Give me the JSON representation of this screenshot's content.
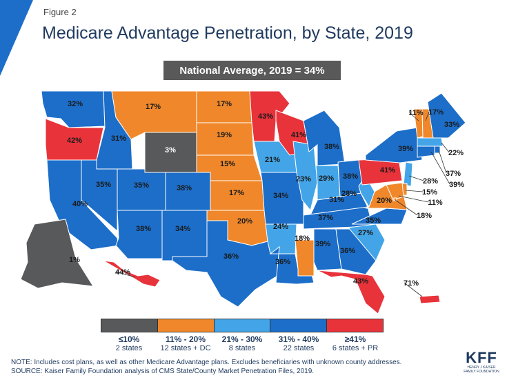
{
  "figure_label": "Figure 2",
  "title": "Medicare Advantage Penetration, by State, 2019",
  "national_average": "National Average, 2019 = 34%",
  "colors": {
    "dark_gray": "#58595b",
    "orange": "#f0882b",
    "light_blue": "#43a5e8",
    "blue": "#1c6ec9",
    "red": "#e8333b",
    "accent": "#1c6ec9"
  },
  "legend": [
    {
      "color": "#58595b",
      "range": "≤10%",
      "count": "2 states"
    },
    {
      "color": "#f0882b",
      "range": "11% - 20%",
      "count": "12 states + DC"
    },
    {
      "color": "#43a5e8",
      "range": "21% - 30%",
      "count": "8 states"
    },
    {
      "color": "#1c6ec9",
      "range": "31% - 40%",
      "count": "22 states"
    },
    {
      "color": "#e8333b",
      "range": "≥41%",
      "count": "6 states + PR"
    }
  ],
  "states": [
    {
      "name": "Washington",
      "value": "32%",
      "cls": "blue"
    },
    {
      "name": "Oregon",
      "value": "42%",
      "cls": "red"
    },
    {
      "name": "California",
      "value": "40%",
      "cls": "blue"
    },
    {
      "name": "Idaho",
      "value": "31%",
      "cls": "blue"
    },
    {
      "name": "Nevada",
      "value": "35%",
      "cls": "blue"
    },
    {
      "name": "Montana",
      "value": "17%",
      "cls": "orange"
    },
    {
      "name": "Wyoming",
      "value": "3%",
      "cls": "dark_gray"
    },
    {
      "name": "Utah",
      "value": "35%",
      "cls": "blue"
    },
    {
      "name": "Arizona",
      "value": "38%",
      "cls": "blue"
    },
    {
      "name": "Colorado",
      "value": "38%",
      "cls": "blue"
    },
    {
      "name": "New Mexico",
      "value": "34%",
      "cls": "blue"
    },
    {
      "name": "North Dakota",
      "value": "17%",
      "cls": "orange"
    },
    {
      "name": "South Dakota",
      "value": "19%",
      "cls": "orange"
    },
    {
      "name": "Nebraska",
      "value": "15%",
      "cls": "orange"
    },
    {
      "name": "Kansas",
      "value": "17%",
      "cls": "orange"
    },
    {
      "name": "Oklahoma",
      "value": "20%",
      "cls": "orange"
    },
    {
      "name": "Texas",
      "value": "36%",
      "cls": "blue"
    },
    {
      "name": "Minnesota",
      "value": "43%",
      "cls": "red"
    },
    {
      "name": "Iowa",
      "value": "21%",
      "cls": "light_blue"
    },
    {
      "name": "Missouri",
      "value": "34%",
      "cls": "blue"
    },
    {
      "name": "Arkansas",
      "value": "24%",
      "cls": "light_blue"
    },
    {
      "name": "Louisiana",
      "value": "36%",
      "cls": "blue"
    },
    {
      "name": "Wisconsin",
      "value": "41%",
      "cls": "red"
    },
    {
      "name": "Illinois",
      "value": "23%",
      "cls": "light_blue"
    },
    {
      "name": "Mississippi",
      "value": "18%",
      "cls": "orange"
    },
    {
      "name": "Michigan",
      "value": "38%",
      "cls": "blue"
    },
    {
      "name": "Indiana",
      "value": "29%",
      "cls": "light_blue"
    },
    {
      "name": "Kentucky",
      "value": "31%",
      "cls": "blue"
    },
    {
      "name": "Tennessee",
      "value": "37%",
      "cls": "blue"
    },
    {
      "name": "Alabama",
      "value": "39%",
      "cls": "blue"
    },
    {
      "name": "Ohio",
      "value": "38%",
      "cls": "blue"
    },
    {
      "name": "Georgia",
      "value": "36%",
      "cls": "blue"
    },
    {
      "name": "Florida",
      "value": "43%",
      "cls": "red"
    },
    {
      "name": "South Carolina",
      "value": "27%",
      "cls": "light_blue"
    },
    {
      "name": "North Carolina",
      "value": "35%",
      "cls": "blue"
    },
    {
      "name": "West Virginia",
      "value": "28%",
      "cls": "light_blue"
    },
    {
      "name": "Virginia",
      "value": "20%",
      "cls": "orange"
    },
    {
      "name": "Pennsylvania",
      "value": "41%",
      "cls": "red"
    },
    {
      "name": "New York",
      "value": "39%",
      "cls": "blue"
    },
    {
      "name": "Vermont",
      "value": "11%",
      "cls": "orange"
    },
    {
      "name": "New Hampshire",
      "value": "17%",
      "cls": "orange"
    },
    {
      "name": "Maine",
      "value": "33%",
      "cls": "blue"
    },
    {
      "name": "Massachusetts",
      "value": "22%",
      "cls": "light_blue"
    },
    {
      "name": "Rhode Island",
      "value": "37%",
      "cls": "blue"
    },
    {
      "name": "Connecticut",
      "value": "39%",
      "cls": "blue"
    },
    {
      "name": "New Jersey",
      "value": "28%",
      "cls": "light_blue"
    },
    {
      "name": "Delaware",
      "value": "15%",
      "cls": "orange"
    },
    {
      "name": "Maryland",
      "value": "11%",
      "cls": "orange"
    },
    {
      "name": "District of Columbia",
      "value": "18%",
      "cls": "orange"
    },
    {
      "name": "Alaska",
      "value": "1%",
      "cls": "dark_gray"
    },
    {
      "name": "Hawaii",
      "value": "44%",
      "cls": "red"
    },
    {
      "name": "Puerto Rico",
      "value": "71%",
      "cls": "red"
    }
  ],
  "note": "NOTE: Includes cost plans, as well as other Medicare Advantage plans. Excludes beneficiaries with unknown county addresses.",
  "source": "SOURCE: Kaiser Family Foundation analysis of CMS State/County Market Penetration Files, 2019.",
  "logo": {
    "main": "KFF",
    "sub": "HENRY J KAISER FAMILY FOUNDATION"
  }
}
